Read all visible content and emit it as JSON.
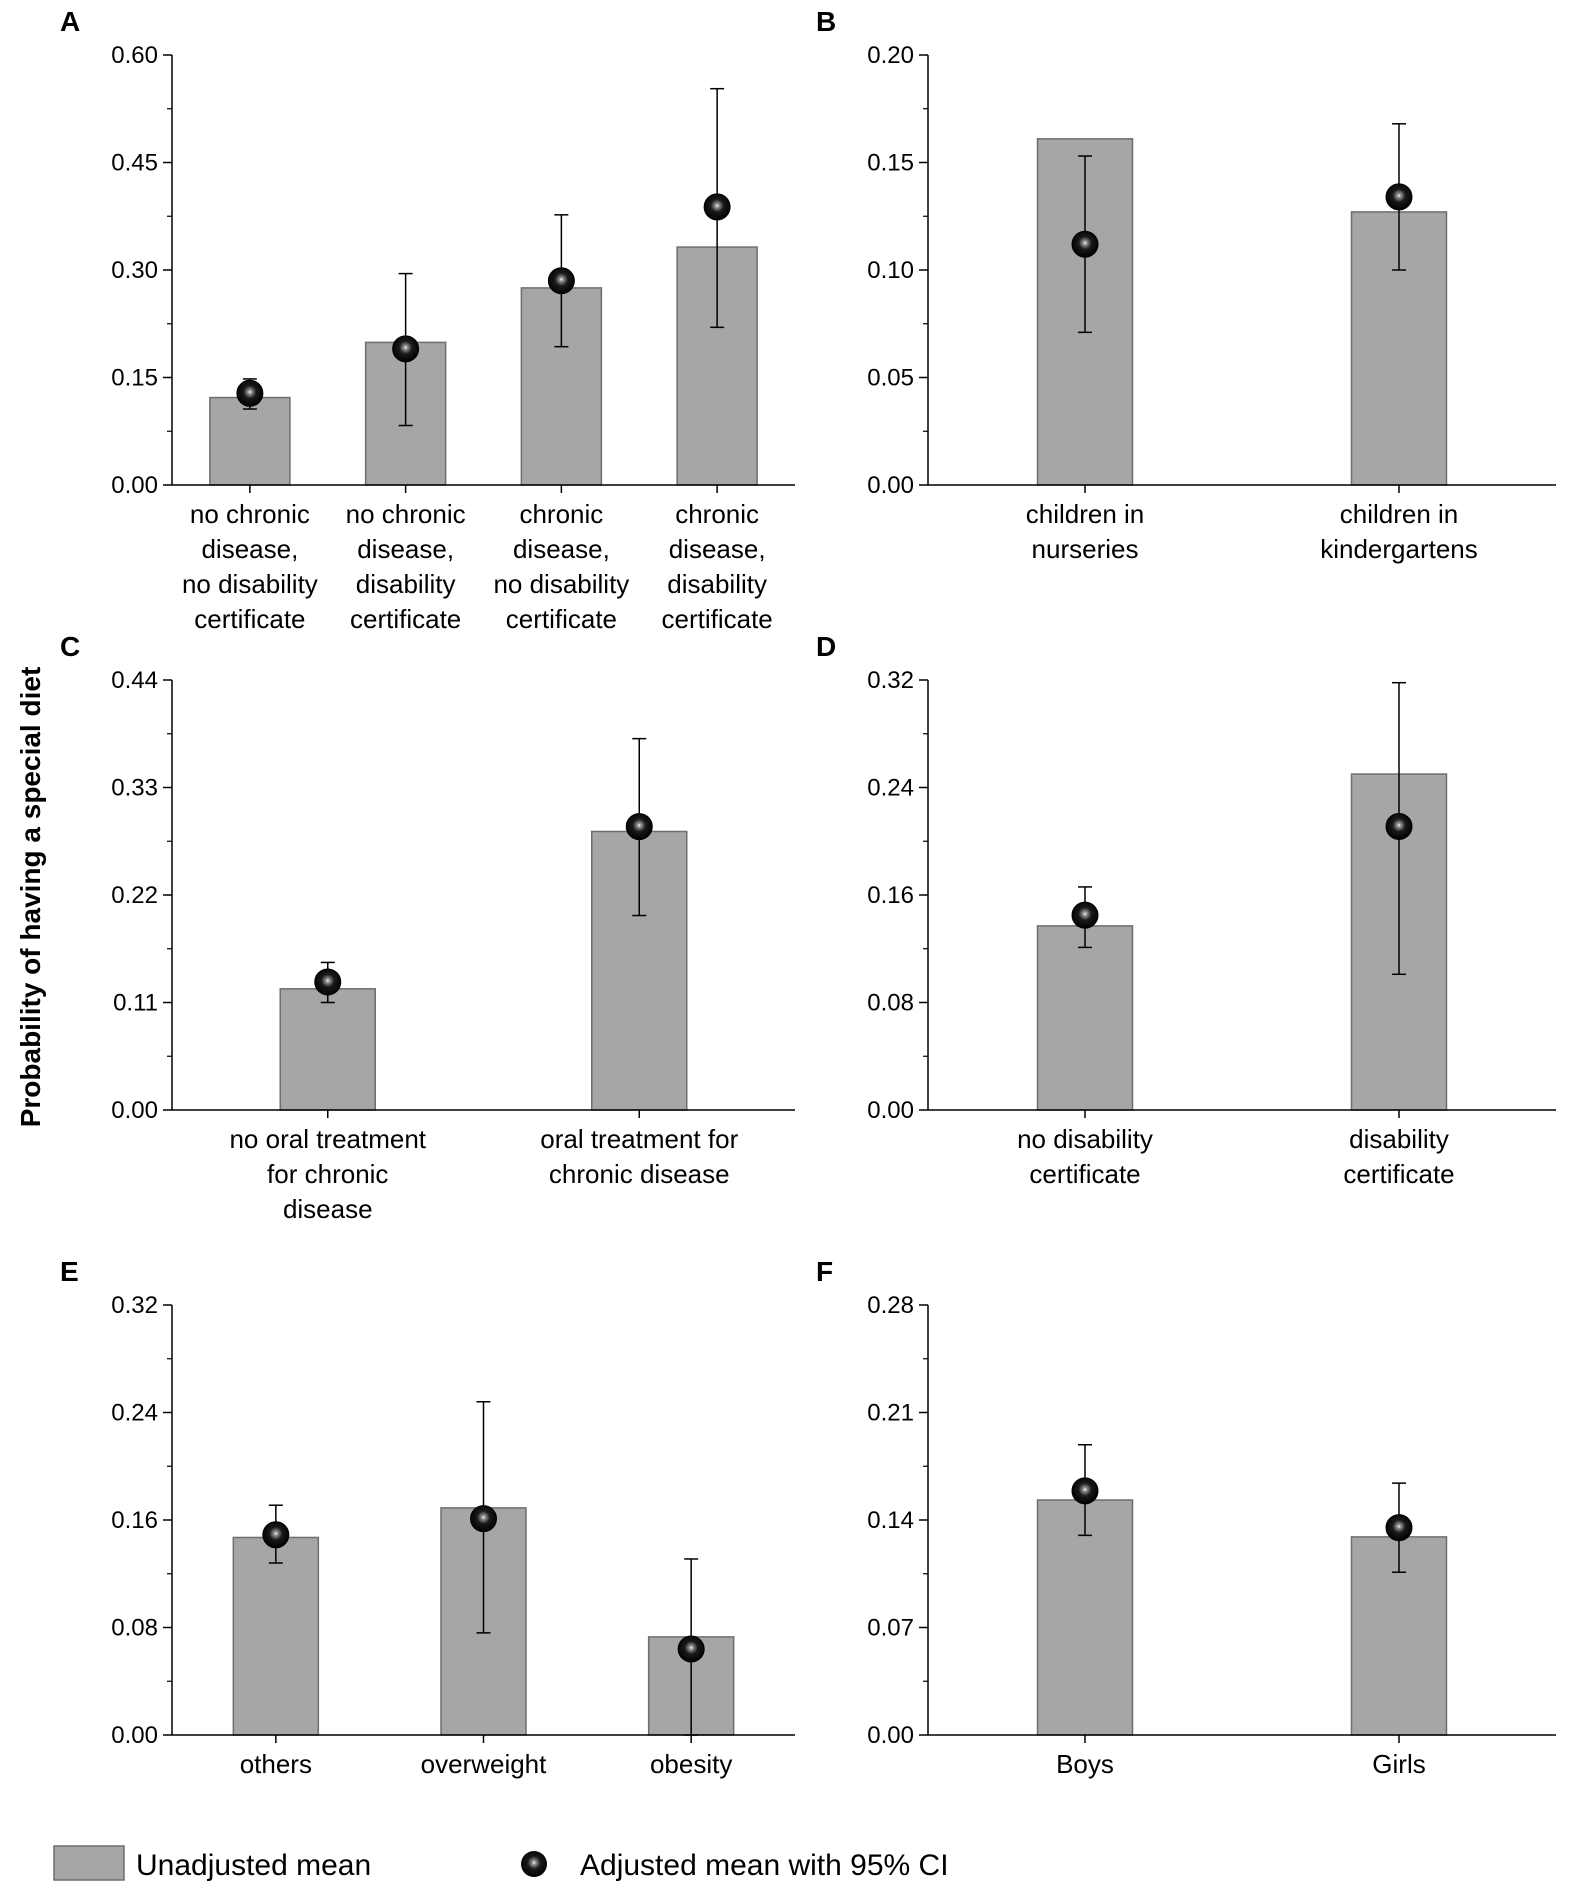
{
  "y_axis_label": "Probability of having a special diet",
  "legend": {
    "unadjusted": "Unadjusted mean",
    "adjusted": "Adjusted mean with 95% CI"
  },
  "colors": {
    "bar_fill": "#a6a6a6",
    "bar_stroke": "#6e6e6e",
    "axis": "#000000",
    "marker": "#000000"
  },
  "chart_data": [
    {
      "panel": "A",
      "type": "bar",
      "categories": [
        [
          "no chronic",
          "disease,",
          "no disability",
          "certificate"
        ],
        [
          "no chronic",
          "disease,",
          "disability",
          "certificate"
        ],
        [
          "chronic",
          "disease,",
          "no disability",
          "certificate"
        ],
        [
          "chronic",
          "disease,",
          "disability",
          "certificate"
        ]
      ],
      "yticks": [
        "0.00",
        "0.15",
        "0.30",
        "0.45",
        "0.60"
      ],
      "ylim": [
        0,
        0.6
      ],
      "unadjusted": [
        0.122,
        0.199,
        0.275,
        0.332
      ],
      "adjusted": [
        0.128,
        0.19,
        0.285,
        0.388
      ],
      "ci_low": [
        0.106,
        0.083,
        0.193,
        0.22
      ],
      "ci_high": [
        0.148,
        0.295,
        0.377,
        0.553
      ]
    },
    {
      "panel": "B",
      "type": "bar",
      "categories": [
        [
          "children in",
          "nurseries"
        ],
        [
          "children in",
          "kindergartens"
        ]
      ],
      "yticks": [
        "0.00",
        "0.05",
        "0.10",
        "0.15",
        "0.20"
      ],
      "ylim": [
        0,
        0.2
      ],
      "unadjusted": [
        0.161,
        0.127
      ],
      "adjusted": [
        0.112,
        0.134
      ],
      "ci_low": [
        0.071,
        0.1
      ],
      "ci_high": [
        0.153,
        0.168
      ]
    },
    {
      "panel": "C",
      "type": "bar",
      "categories": [
        [
          "no oral treatment",
          "for chronic",
          "disease"
        ],
        [
          "oral treatment for",
          "chronic disease"
        ]
      ],
      "yticks": [
        "0.00",
        "0.11",
        "0.22",
        "0.33",
        "0.44"
      ],
      "ylim": [
        0,
        0.44
      ],
      "unadjusted": [
        0.124,
        0.285
      ],
      "adjusted": [
        0.131,
        0.29
      ],
      "ci_low": [
        0.11,
        0.199
      ],
      "ci_high": [
        0.151,
        0.38
      ]
    },
    {
      "panel": "D",
      "type": "bar",
      "categories": [
        [
          "no disability",
          "certificate"
        ],
        [
          "disability",
          "certificate"
        ]
      ],
      "yticks": [
        "0.00",
        "0.08",
        "0.16",
        "0.24",
        "0.32"
      ],
      "ylim": [
        0,
        0.32
      ],
      "unadjusted": [
        0.137,
        0.25
      ],
      "adjusted": [
        0.145,
        0.211
      ],
      "ci_low": [
        0.121,
        0.101
      ],
      "ci_high": [
        0.166,
        0.318
      ]
    },
    {
      "panel": "E",
      "type": "bar",
      "categories": [
        [
          "others"
        ],
        [
          "overweight"
        ],
        [
          "obesity"
        ]
      ],
      "yticks": [
        "0.00",
        "0.08",
        "0.16",
        "0.24",
        "0.32"
      ],
      "ylim": [
        0,
        0.32
      ],
      "unadjusted": [
        0.147,
        0.169,
        0.073
      ],
      "adjusted": [
        0.149,
        0.161,
        0.064
      ],
      "ci_low": [
        0.128,
        0.076,
        0.0
      ],
      "ci_high": [
        0.171,
        0.248,
        0.131
      ]
    },
    {
      "panel": "F",
      "type": "bar",
      "categories": [
        [
          "Boys"
        ],
        [
          "Girls"
        ]
      ],
      "yticks": [
        "0.00",
        "0.07",
        "0.14",
        "0.21",
        "0.28"
      ],
      "ylim": [
        0,
        0.28
      ],
      "unadjusted": [
        0.153,
        0.129
      ],
      "adjusted": [
        0.159,
        0.135
      ],
      "ci_low": [
        0.13,
        0.106
      ],
      "ci_high": [
        0.189,
        0.164
      ]
    }
  ]
}
